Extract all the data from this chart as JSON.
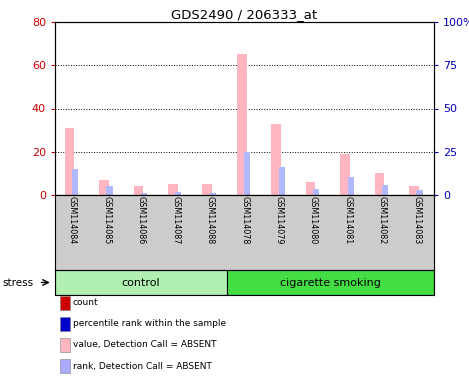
{
  "title": "GDS2490 / 206333_at",
  "samples": [
    "GSM114084",
    "GSM114085",
    "GSM114086",
    "GSM114087",
    "GSM114088",
    "GSM114078",
    "GSM114079",
    "GSM114080",
    "GSM114081",
    "GSM114082",
    "GSM114083"
  ],
  "groups": [
    "control",
    "control",
    "control",
    "control",
    "control",
    "cigarette smoking",
    "cigarette smoking",
    "cigarette smoking",
    "cigarette smoking",
    "cigarette smoking",
    "cigarette smoking"
  ],
  "pink_bars": [
    31,
    7,
    4,
    5,
    5,
    65,
    33,
    6,
    19,
    10,
    4
  ],
  "light_blue_bars": [
    12,
    4,
    1,
    1.5,
    1,
    20,
    13,
    3,
    8.5,
    4.5,
    2.5
  ],
  "ylim_left": [
    0,
    80
  ],
  "ylim_right": [
    0,
    100
  ],
  "yticks_left": [
    0,
    20,
    40,
    60,
    80
  ],
  "ytick_labels_left": [
    "0",
    "20",
    "40",
    "60",
    "80"
  ],
  "yticks_right": [
    0,
    25,
    50,
    75,
    100
  ],
  "ytick_labels_right": [
    "0",
    "25",
    "50",
    "75",
    "100%"
  ],
  "group_colors": [
    "#b2f0b2",
    "#44dd44"
  ],
  "stress_label": "stress",
  "legend_items": [
    {
      "label": "count",
      "color": "#cc0000"
    },
    {
      "label": "percentile rank within the sample",
      "color": "#0000cc"
    },
    {
      "label": "value, Detection Call = ABSENT",
      "color": "#ffb6c1"
    },
    {
      "label": "rank, Detection Call = ABSENT",
      "color": "#aaaaff"
    }
  ],
  "left_tick_color": "#cc0000",
  "right_tick_color": "#0000bb",
  "sample_bg_color": "#cccccc",
  "plot_bg_color": "#ffffff"
}
